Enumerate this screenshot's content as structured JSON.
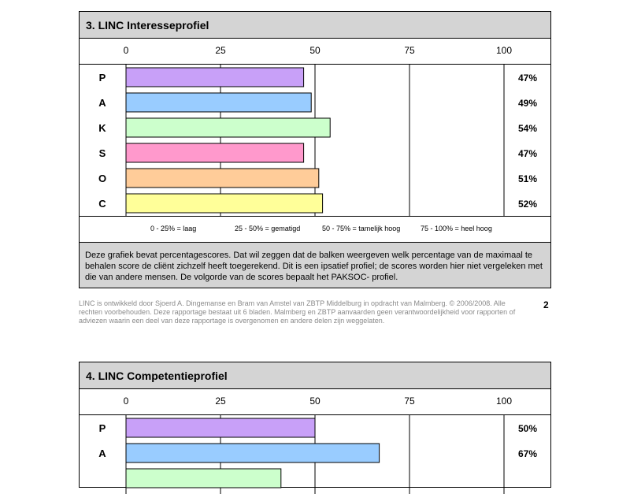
{
  "section1": {
    "title": "3. LINC Interesseprofiel",
    "legend": [
      "0 - 25% = laag",
      "25 - 50% = gematigd",
      "50 - 75% = tamelijk hoog",
      "75 - 100% = heel hoog"
    ],
    "description": "Deze grafiek bevat percentagescores. Dat wil zeggen dat de balken weergeven welk percentage van de maximaal te behalen score de cliënt zichzelf heeft toegerekend. Dit is een ipsatief profiel; de scores worden hier niet vergeleken met die van andere mensen. De volgorde van de scores bepaalt het PAKSOC- profiel."
  },
  "footer": {
    "text": "LINC is ontwikkeld door Sjoerd A. Dingemanse en Bram van Amstel van ZBTP Middelburg in opdracht van Malmberg. © 2006/2008. Alle rechten voorbehouden. Deze rapportage bestaat uit 6 bladen. Malmberg en ZBTP aanvaarden geen verantwoordelijkheid voor rapporten of adviezen waarin een deel van deze rapportage is overgenomen en andere delen zijn weggelaten.",
    "page_number": "2"
  },
  "section2": {
    "title": "4. LINC Competentieprofiel"
  },
  "chart_data": [
    {
      "type": "bar",
      "orientation": "horizontal",
      "title": "3. LINC Interesseprofiel",
      "categories": [
        "P",
        "A",
        "K",
        "S",
        "O",
        "C"
      ],
      "values": [
        47,
        49,
        54,
        47,
        51,
        52
      ],
      "value_labels": [
        "47%",
        "49%",
        "54%",
        "47%",
        "51%",
        "52%"
      ],
      "colors": [
        "#c8a0f8",
        "#99ccff",
        "#ccffcc",
        "#ff99cc",
        "#ffcc99",
        "#ffff99"
      ],
      "xticks": [
        "0",
        "25",
        "50",
        "75",
        "100"
      ],
      "xlim": [
        0,
        100
      ]
    },
    {
      "type": "bar",
      "orientation": "horizontal",
      "title": "4. LINC Competentieprofiel",
      "categories": [
        "P",
        "A",
        ""
      ],
      "values": [
        50,
        67,
        41
      ],
      "value_labels": [
        "50%",
        "67%",
        ""
      ],
      "colors": [
        "#c8a0f8",
        "#99ccff",
        "#ccffcc"
      ],
      "xticks": [
        "0",
        "25",
        "50",
        "75",
        "100"
      ],
      "xlim": [
        0,
        100
      ]
    }
  ]
}
